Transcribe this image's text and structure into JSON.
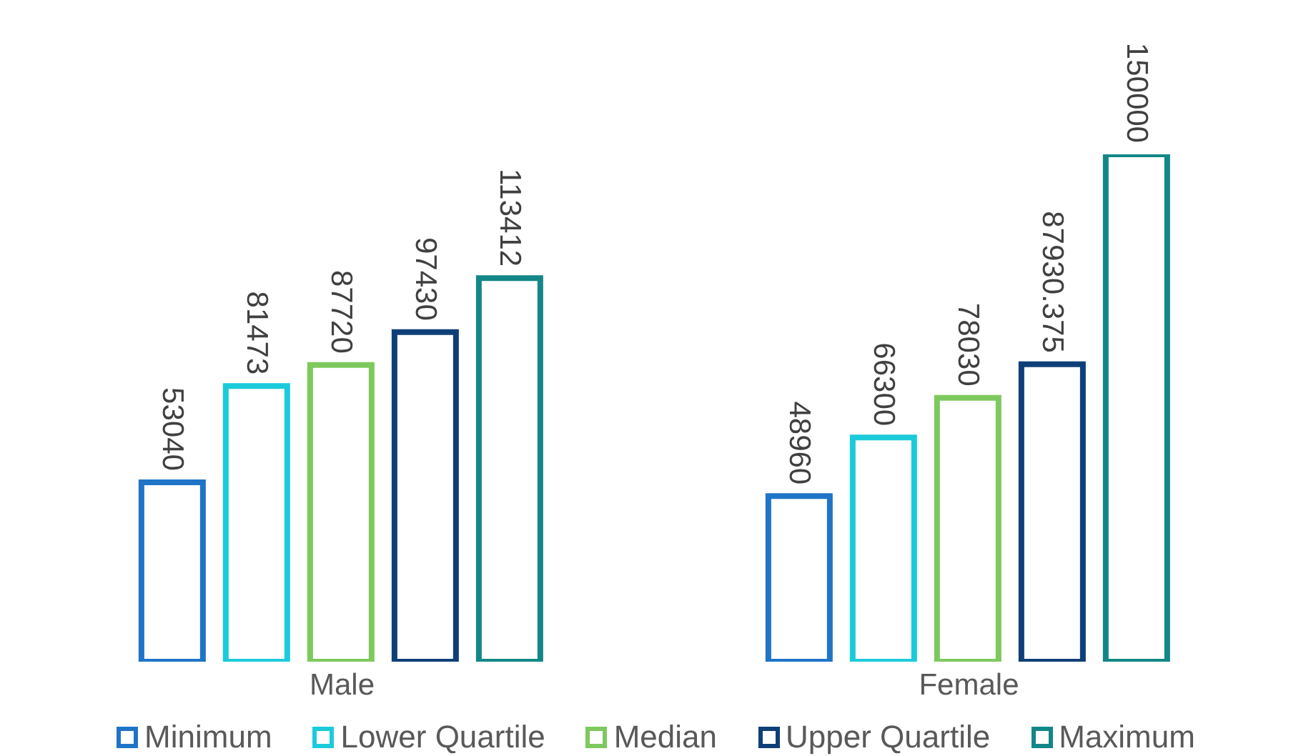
{
  "chart_data": {
    "type": "bar",
    "categories": [
      "Male",
      "Female"
    ],
    "series": [
      {
        "name": "Minimum",
        "color": "#1f74c8",
        "values": [
          53040,
          48960
        ]
      },
      {
        "name": "Lower Quartile",
        "color": "#1ccbdb",
        "values": [
          81473,
          66300
        ]
      },
      {
        "name": "Median",
        "color": "#7dc95e",
        "values": [
          87720,
          78030
        ]
      },
      {
        "name": "Upper Quartile",
        "color": "#0f3f78",
        "values": [
          97430,
          87930.375
        ]
      },
      {
        "name": "Maximum",
        "color": "#138787",
        "values": [
          113412,
          150000
        ]
      }
    ],
    "data_labels": true,
    "legend": "bottom",
    "grid": false
  }
}
